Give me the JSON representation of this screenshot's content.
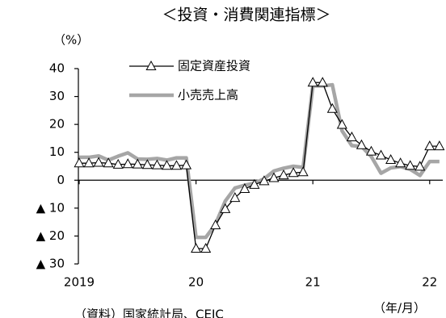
{
  "chart_data": {
    "type": "line",
    "title": "＜投資・消費関連指標＞",
    "y_label": "（%）",
    "x_label": "（年/月）",
    "source": "（資料）国家統計局、CEIC",
    "categories": [
      "2019",
      null,
      null,
      null,
      null,
      null,
      null,
      null,
      null,
      null,
      null,
      null,
      "20",
      null,
      null,
      null,
      null,
      null,
      null,
      null,
      null,
      null,
      null,
      null,
      "21",
      null,
      null,
      null,
      null,
      null,
      null,
      null,
      null,
      null,
      null,
      null,
      "22",
      null
    ],
    "series": [
      {
        "name": "固定資産投資",
        "color": "#000000",
        "marker": "triangle",
        "values": [
          6.1,
          6.1,
          6.3,
          6.1,
          5.6,
          5.8,
          5.7,
          5.5,
          5.4,
          5.2,
          5.2,
          5.4,
          -24.5,
          -24.5,
          -16.1,
          -10.3,
          -6.3,
          -3.1,
          -1.6,
          -0.3,
          0.8,
          1.8,
          2.6,
          2.9,
          35.0,
          35.0,
          25.6,
          19.9,
          15.4,
          12.6,
          10.3,
          8.9,
          7.3,
          6.1,
          5.2,
          4.9,
          12.2,
          12.2
        ]
      },
      {
        "name": "小売売上高",
        "color": "#a6a6a6",
        "values": [
          8.2,
          8.2,
          8.7,
          7.2,
          8.6,
          9.8,
          7.6,
          7.5,
          7.8,
          7.2,
          8.0,
          8.0,
          -20.5,
          -20.5,
          -15.8,
          -7.5,
          -2.8,
          -1.8,
          -1.1,
          0.5,
          3.3,
          4.3,
          5.0,
          4.6,
          33.8,
          33.8,
          34.2,
          17.7,
          12.4,
          12.1,
          8.5,
          2.5,
          4.4,
          4.9,
          3.9,
          1.7,
          6.7,
          6.7
        ]
      }
    ],
    "ylim": [
      -30,
      40
    ],
    "yticks": [
      {
        "value": -30,
        "label": "▲ 30"
      },
      {
        "value": -20,
        "label": "▲ 20"
      },
      {
        "value": -10,
        "label": "▲ 10"
      },
      0,
      10,
      20,
      30,
      40
    ],
    "grid": false,
    "legend": "top-left"
  }
}
